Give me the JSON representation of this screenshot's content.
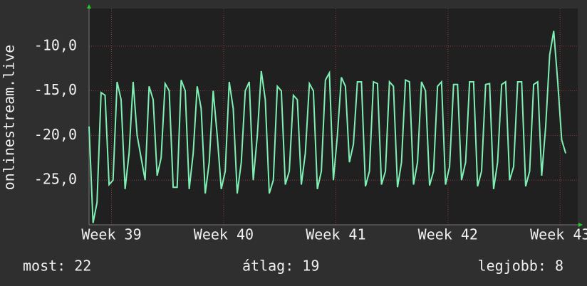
{
  "chart_data": {
    "type": "line",
    "y_label": "onlinestream.live",
    "ylim": [
      -30,
      -5.8
    ],
    "yticks": [
      {
        "value": -10,
        "label": "-10,0"
      },
      {
        "value": -15,
        "label": "-15,0"
      },
      {
        "value": -20,
        "label": "-20,0"
      },
      {
        "value": -25,
        "label": "-25,0"
      }
    ],
    "xlim": [
      0,
      122
    ],
    "xticks": [
      {
        "value": 5.6,
        "label": "Week 39"
      },
      {
        "value": 33.6,
        "label": "Week 40"
      },
      {
        "value": 61.6,
        "label": "Week 41"
      },
      {
        "value": 89.6,
        "label": "Week 42"
      },
      {
        "value": 117.6,
        "label": "Week 43"
      }
    ],
    "grid": true,
    "series": [
      {
        "color": "#7ef0b4",
        "values": [
          -19,
          -29.8,
          -27.5,
          -15.2,
          -15.5,
          -25.5,
          -25,
          -14,
          -16,
          -26,
          -22,
          -14,
          -20,
          -22.5,
          -25,
          -14.5,
          -16,
          -24.5,
          -22.5,
          -14.2,
          -15,
          -25.8,
          -25.8,
          -13.8,
          -15,
          -26,
          -22,
          -14.5,
          -17,
          -26.5,
          -23,
          -15,
          -20,
          -26,
          -24,
          -14,
          -17,
          -26.5,
          -23,
          -15,
          -14,
          -25,
          -20,
          -12.8,
          -16,
          -26.5,
          -25,
          -14.5,
          -15,
          -25.5,
          -24,
          -15.5,
          -16,
          -25.5,
          -22,
          -14.2,
          -15,
          -26,
          -24,
          -13.8,
          -13,
          -25,
          -20,
          -13.5,
          -14.5,
          -23,
          -21,
          -14,
          -14,
          -25.7,
          -24,
          -14,
          -14.2,
          -25.5,
          -24,
          -14,
          -14.5,
          -25.8,
          -23,
          -13.8,
          -14,
          -25.5,
          -23,
          -14,
          -15,
          -25.6,
          -24,
          -14.5,
          -14,
          -25.5,
          -23.5,
          -14.3,
          -14.3,
          -25,
          -23,
          -14,
          -14,
          -25.7,
          -24,
          -14.3,
          -14.2,
          -26,
          -23,
          -14.3,
          -14,
          -25,
          -23.5,
          -14,
          -14,
          -25.7,
          -24,
          -14.3,
          -14,
          -24.5,
          -19,
          -11,
          -8.3,
          -14,
          -20.5,
          -22
        ]
      }
    ]
  },
  "footer": {
    "current": "most: 22",
    "average": "átlag: 19",
    "best": "legjobb: 8"
  }
}
